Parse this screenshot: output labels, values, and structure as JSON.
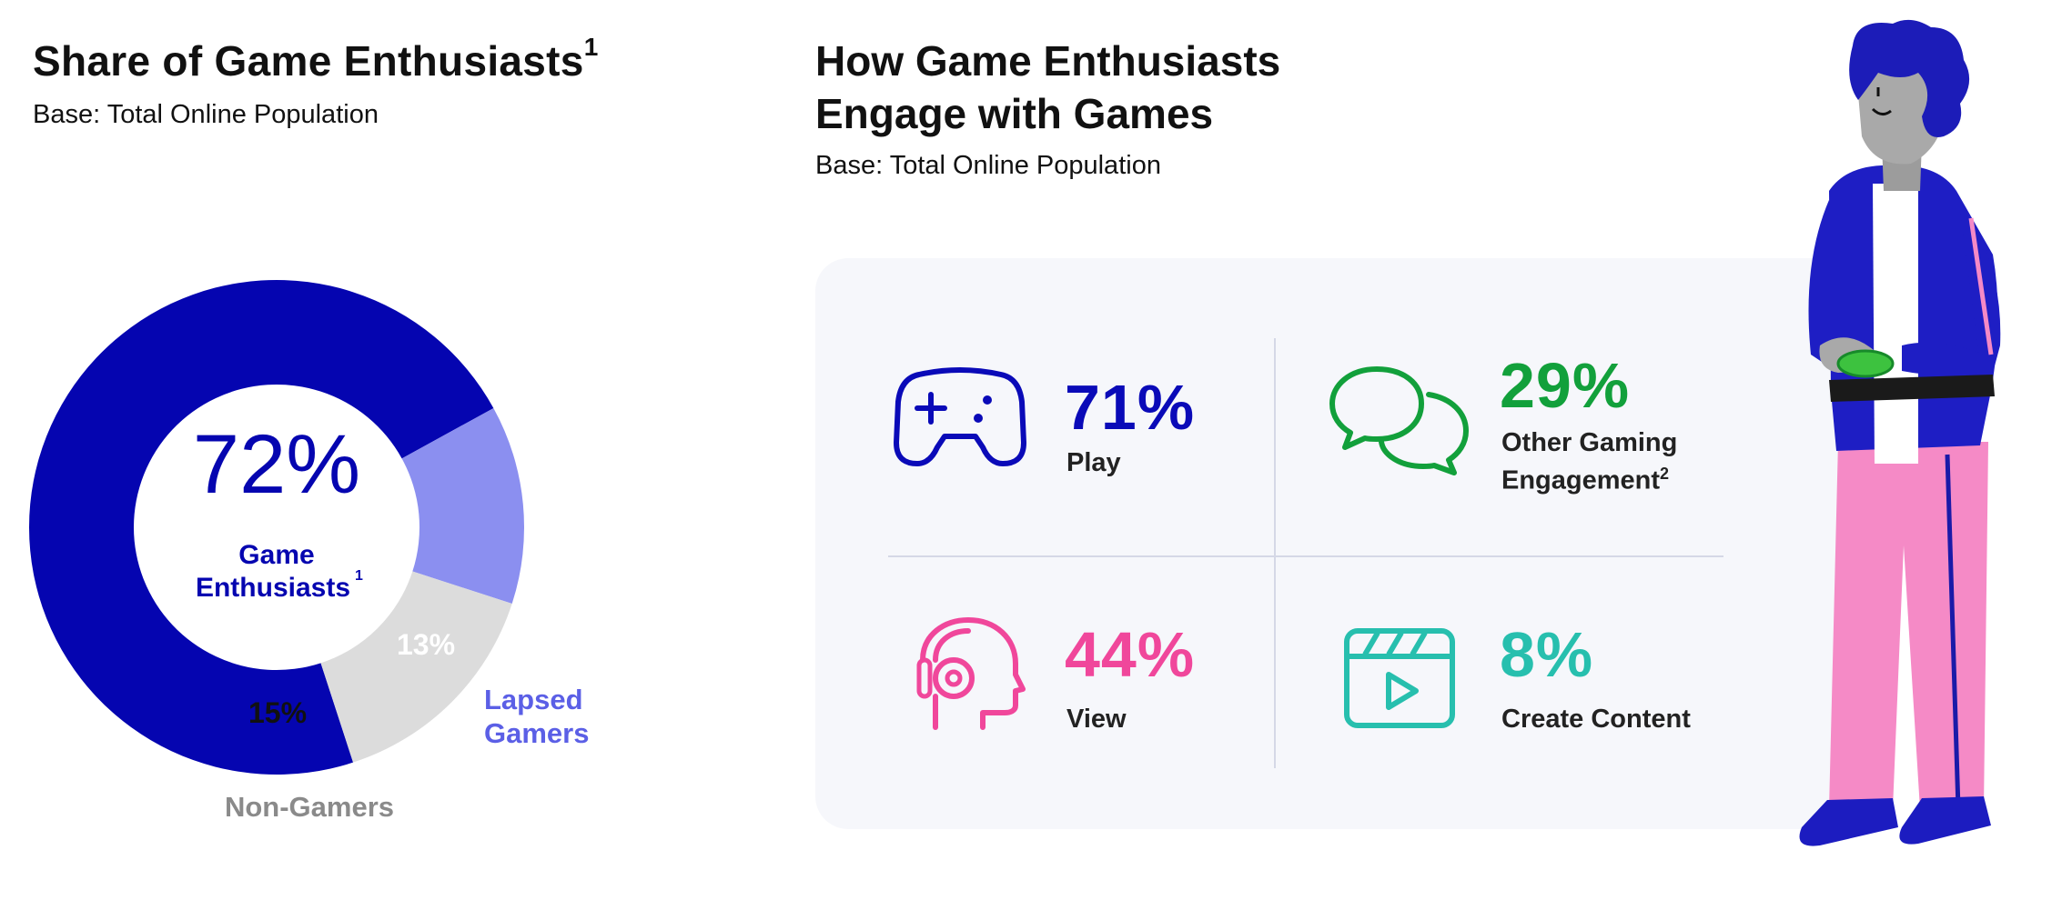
{
  "left": {
    "title": "Share of Game Enthusiasts",
    "title_sup": "1",
    "base": "Base: Total Online Population"
  },
  "right": {
    "title_line1": "How Game Enthusiasts",
    "title_line2": "Engage with Games",
    "base": "Base: Total Online Population"
  },
  "chart_data": {
    "type": "pie",
    "categories": [
      "Game Enthusiasts",
      "Lapsed Gamers",
      "Non-Gamers"
    ],
    "values": [
      72,
      13,
      15
    ],
    "value_labels": [
      "72%",
      "13%",
      "15%"
    ],
    "center_value": "72%",
    "center_label_line1": "Game",
    "center_label_line2": "Enthusiasts",
    "center_label_sup": "1",
    "outer_label_lapsed_line1": "Lapsed",
    "outer_label_lapsed_line2": "Gamers",
    "outer_label_non": "Non-Gamers",
    "colors": [
      "#0505b0",
      "#8b8ff0",
      "#dcdcdc"
    ]
  },
  "stats": [
    {
      "value": "71%",
      "label": "Play",
      "label_line2": "",
      "label_sup": "",
      "color": "#0a0ab8",
      "icon": "gamepad-icon"
    },
    {
      "value": "29%",
      "label": "Other Gaming",
      "label_line2": "Engagement",
      "label_sup": "2",
      "color": "#12a03b",
      "icon": "chat-bubbles-icon"
    },
    {
      "value": "44%",
      "label": "View",
      "label_line2": "",
      "label_sup": "",
      "color": "#f0479b",
      "icon": "head-headphones-icon"
    },
    {
      "value": "8%",
      "label": "Create Content",
      "label_line2": "",
      "label_sup": "",
      "color": "#27bfae",
      "icon": "video-clapper-icon"
    }
  ],
  "colors": {
    "navy": "#0505b0",
    "lapsed": "#8b8ff0",
    "nongamer": "#dcdcdc",
    "nongamer_label": "#8a8a8a",
    "panel": "#f6f7fb"
  }
}
